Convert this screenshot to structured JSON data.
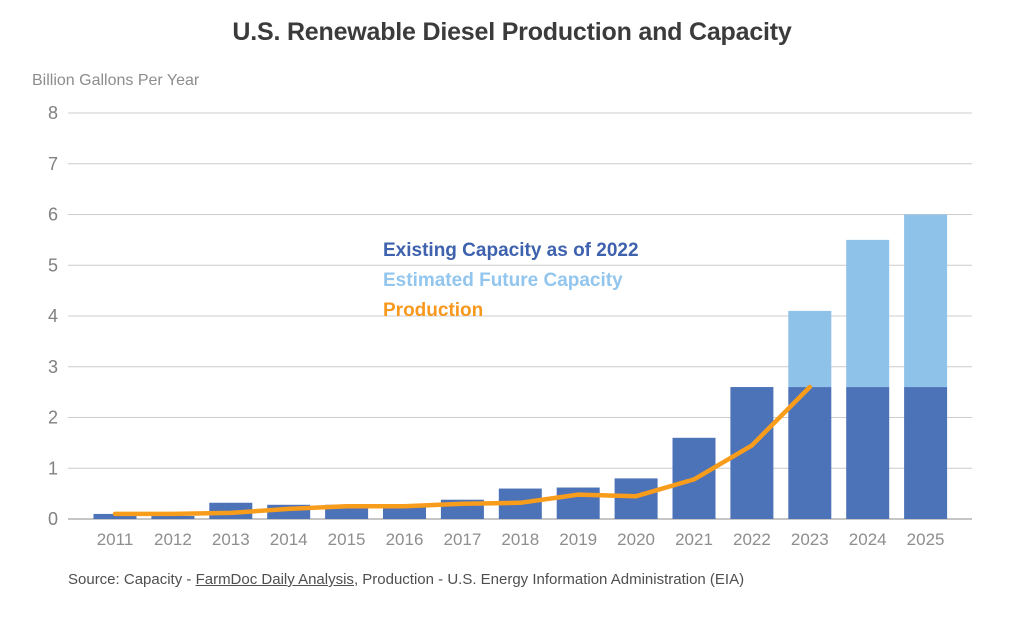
{
  "title": "U.S. Renewable Diesel Production and Capacity",
  "axis_unit_label": "Billion Gallons Per Year",
  "legend": {
    "existing": {
      "label": "Existing Capacity as of 2022",
      "color": "#3E62AE"
    },
    "future": {
      "label": "Estimated Future Capacity",
      "color": "#92C6EE"
    },
    "production": {
      "label": "Production",
      "color": "#F8981D"
    }
  },
  "source": {
    "prefix": "Source: Capacity - ",
    "link_text": "FarmDoc Daily Analysis",
    "suffix": ", Production - U.S. Energy Information Administration (EIA)"
  },
  "chart_data": {
    "type": "bar",
    "title": "U.S. Renewable Diesel Production and Capacity",
    "xlabel": "",
    "ylabel": "Billion Gallons Per Year",
    "ylim": [
      0,
      8
    ],
    "yticks": [
      0,
      1,
      2,
      3,
      4,
      5,
      6,
      7,
      8
    ],
    "grid": true,
    "legend_position": "inside-center",
    "categories": [
      "2011",
      "2012",
      "2013",
      "2014",
      "2015",
      "2016",
      "2017",
      "2018",
      "2019",
      "2020",
      "2021",
      "2022",
      "2023",
      "2024",
      "2025"
    ],
    "series": [
      {
        "name": "Existing Capacity as of 2022",
        "type": "bar",
        "stack": "capacity",
        "color": "#4C72B8",
        "values": [
          0.1,
          0.06,
          0.32,
          0.28,
          0.28,
          0.28,
          0.38,
          0.6,
          0.62,
          0.8,
          1.6,
          2.6,
          2.6,
          2.6,
          2.6
        ]
      },
      {
        "name": "Estimated Future Capacity",
        "type": "bar",
        "stack": "capacity",
        "color": "#8FC2E9",
        "values": [
          0,
          0,
          0,
          0,
          0,
          0,
          0,
          0,
          0,
          0,
          0,
          0,
          1.5,
          2.9,
          3.4
        ],
        "stacked_totals_note": {
          "2023": 4.1,
          "2024": 5.5,
          "2025": 6.0
        }
      },
      {
        "name": "Production",
        "type": "line",
        "color": "#F89C1C",
        "values": [
          0.1,
          0.1,
          0.12,
          0.2,
          0.25,
          0.25,
          0.3,
          0.32,
          0.48,
          0.45,
          0.78,
          1.45,
          2.6,
          null,
          null
        ]
      }
    ]
  }
}
